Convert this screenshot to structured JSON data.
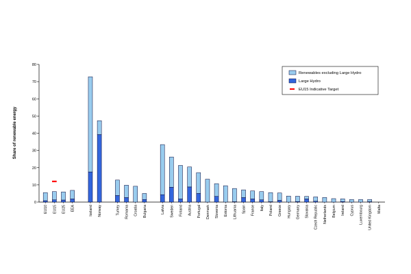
{
  "chart_data": {
    "type": "bar",
    "stacked": true,
    "ylabel": "Share of renewable energy",
    "ylim": [
      0,
      80
    ],
    "yticks": [
      "0",
      "10",
      "20",
      "30",
      "40",
      "50",
      "60",
      "70",
      "80"
    ],
    "grid": false,
    "legend_position": "top-right",
    "colors": {
      "large_hydro": "#3366dd",
      "renewables_excl": "#99ccee",
      "target": "#ff0000",
      "bar_outline": "#000033"
    },
    "categories": [
      "EU10",
      "EU15",
      "EU25",
      "EEA",
      "Iceland",
      "Norway",
      "Turkey",
      "Romania",
      "Croatia",
      "Bulgaria",
      "Latvia",
      "Sweden",
      "Finland",
      "Austria",
      "Portugal",
      "Denmark",
      "Slovenia",
      "Estonia",
      "Lithuania",
      "Spain",
      "France",
      "Italy",
      "Poland",
      "Greece",
      "Hungary",
      "Germany",
      "Slovakia",
      "Czech Republic",
      "Netherlands",
      "Belgium",
      "Ireland",
      "Cyprus",
      "Luxembourg",
      "United Kingdom",
      "Malta"
    ],
    "gap_after": [
      3,
      5,
      9
    ],
    "series": [
      {
        "name": "Large Hydro",
        "values": [
          0.8,
          1.3,
          1.2,
          1.8,
          17.5,
          39.2,
          3.8,
          2.6,
          0,
          1.5,
          4.3,
          8.6,
          1.8,
          8.8,
          5.0,
          0,
          3.3,
          0,
          0.2,
          2.6,
          1.8,
          1.3,
          0.2,
          1.0,
          0,
          0.3,
          1.8,
          0.5,
          0,
          0,
          0.3,
          0,
          0,
          0.2,
          0
        ],
        "color": "#3366dd"
      },
      {
        "name": "Renewables excluding Large Hydro",
        "values": [
          4.7,
          4.8,
          4.7,
          5.0,
          55.3,
          8.1,
          9.0,
          7.2,
          9.2,
          3.5,
          29.1,
          17.6,
          19.5,
          11.6,
          12.1,
          13.3,
          7.4,
          9.5,
          7.7,
          4.5,
          4.7,
          4.8,
          5.3,
          4.3,
          3.5,
          3.1,
          1.5,
          2.5,
          2.7,
          2.0,
          1.6,
          1.5,
          1.5,
          1.3,
          0
        ],
        "color": "#99ccee"
      }
    ],
    "targets": [
      {
        "name": "EU15 Indicative Target",
        "category": "EU15",
        "value": 12.0
      }
    ],
    "legend": [
      {
        "label": "Renewables excluding Large Hydro",
        "kind": "bar",
        "color": "#99ccee"
      },
      {
        "label": "Large Hydro",
        "kind": "bar",
        "color": "#3366dd"
      },
      {
        "label": "EU15 Indicative Target",
        "kind": "dash",
        "color": "#ff0000"
      }
    ]
  }
}
